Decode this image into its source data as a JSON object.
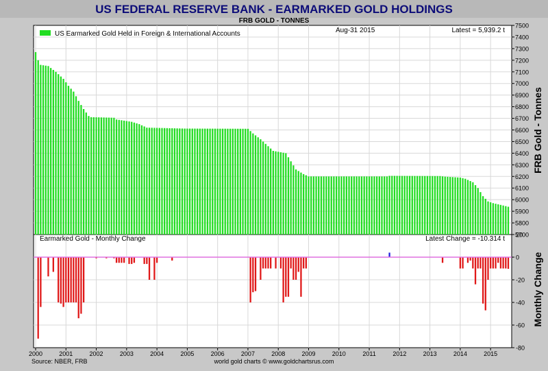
{
  "header": {
    "title": "US FEDERAL RESERVE BANK - EARMARKED GOLD HOLDINGS",
    "subtitle": "FRB GOLD - TONNES"
  },
  "footer": {
    "source": "Source: NBER, FRB",
    "credit": "world gold charts © www.goldchartsrus.com"
  },
  "colors": {
    "holdings_bar": "#22dd22",
    "change_negative": "#e01818",
    "change_positive": "#2020e0",
    "zero_line": "#e070e0",
    "title_bg": "#b8b8b8",
    "plot_bg": "#ffffff"
  },
  "chart_data": [
    {
      "type": "bar",
      "panel": "top",
      "legend_label": "US Earmarked Gold Held in Foreign & International Accounts",
      "legend_position": "top-left",
      "date_label": "Aug-31  2015",
      "latest_label": "Latest = 5,939.2 t",
      "ylabel": "FRB Gold - Tonnes",
      "ylim": [
        5700,
        7500
      ],
      "yticks": [
        5700,
        5800,
        5900,
        6000,
        6100,
        6200,
        6300,
        6400,
        6500,
        6600,
        6700,
        6800,
        6900,
        7000,
        7100,
        7200,
        7300,
        7400,
        7500
      ],
      "grid": true,
      "start": "2000-01",
      "end": "2015-08",
      "frequency": "monthly",
      "anchors": [
        [
          "2000-01",
          7270
        ],
        [
          "2000-02",
          7200
        ],
        [
          "2000-03",
          7160
        ],
        [
          "2000-06",
          7150
        ],
        [
          "2000-09",
          7100
        ],
        [
          "2000-12",
          7040
        ],
        [
          "2001-02",
          6980
        ],
        [
          "2001-04",
          6930
        ],
        [
          "2001-06",
          6850
        ],
        [
          "2001-08",
          6780
        ],
        [
          "2001-10",
          6720
        ],
        [
          "2001-11",
          6710
        ],
        [
          "2002-08",
          6705
        ],
        [
          "2002-09",
          6690
        ],
        [
          "2003-03",
          6670
        ],
        [
          "2003-06",
          6650
        ],
        [
          "2003-09",
          6620
        ],
        [
          "2004-12",
          6612
        ],
        [
          "2007-01",
          6610
        ],
        [
          "2007-03",
          6570
        ],
        [
          "2007-06",
          6520
        ],
        [
          "2007-09",
          6460
        ],
        [
          "2007-11",
          6420
        ],
        [
          "2008-04",
          6400
        ],
        [
          "2008-06",
          6330
        ],
        [
          "2008-08",
          6260
        ],
        [
          "2008-11",
          6220
        ],
        [
          "2009-01",
          6200
        ],
        [
          "2011-08",
          6200
        ],
        [
          "2011-09",
          6205
        ],
        [
          "2013-05",
          6203
        ],
        [
          "2013-07",
          6198
        ],
        [
          "2014-01",
          6190
        ],
        [
          "2014-03",
          6180
        ],
        [
          "2014-06",
          6150
        ],
        [
          "2014-08",
          6100
        ],
        [
          "2014-10",
          6030
        ],
        [
          "2014-12",
          5985
        ],
        [
          "2015-02",
          5970
        ],
        [
          "2015-05",
          5955
        ],
        [
          "2015-08",
          5939.2
        ]
      ]
    },
    {
      "type": "bar",
      "panel": "bottom",
      "title": "Earmarked Gold  -  Monthly Change",
      "latest_label": "Latest Change = -10.314 t",
      "ylabel": "Monthly Change",
      "ylim": [
        -80,
        20
      ],
      "yticks": [
        -80,
        -60,
        -40,
        -20,
        0,
        20
      ],
      "grid": true,
      "start": "2000-01",
      "end": "2015-08",
      "frequency": "monthly",
      "default_value": 0,
      "changes": [
        [
          "2000-02",
          -72
        ],
        [
          "2000-03",
          -44
        ],
        [
          "2000-06",
          -17
        ],
        [
          "2000-08",
          -13
        ],
        [
          "2000-10",
          -40
        ],
        [
          "2000-11",
          -41
        ],
        [
          "2000-12",
          -44
        ],
        [
          "2001-01",
          -40
        ],
        [
          "2001-02",
          -40
        ],
        [
          "2001-03",
          -40
        ],
        [
          "2001-04",
          -40
        ],
        [
          "2001-05",
          -40
        ],
        [
          "2001-06",
          -54
        ],
        [
          "2001-07",
          -50
        ],
        [
          "2001-08",
          -40
        ],
        [
          "2002-01",
          -1
        ],
        [
          "2002-05",
          -1
        ],
        [
          "2002-08",
          -1
        ],
        [
          "2002-09",
          -5
        ],
        [
          "2002-10",
          -5
        ],
        [
          "2002-11",
          -5
        ],
        [
          "2002-12",
          -5
        ],
        [
          "2003-02",
          -6
        ],
        [
          "2003-03",
          -6
        ],
        [
          "2003-04",
          -5
        ],
        [
          "2003-08",
          -6
        ],
        [
          "2003-09",
          -6
        ],
        [
          "2003-10",
          -20
        ],
        [
          "2003-12",
          -20
        ],
        [
          "2004-01",
          -5
        ],
        [
          "2004-07",
          -3
        ],
        [
          "2007-02",
          -40
        ],
        [
          "2007-03",
          -31
        ],
        [
          "2007-04",
          -30
        ],
        [
          "2007-06",
          -20
        ],
        [
          "2007-07",
          -10
        ],
        [
          "2007-08",
          -10
        ],
        [
          "2007-09",
          -10
        ],
        [
          "2007-10",
          -10
        ],
        [
          "2007-12",
          -10
        ],
        [
          "2008-02",
          -10
        ],
        [
          "2008-03",
          -40
        ],
        [
          "2008-04",
          -35
        ],
        [
          "2008-05",
          -35
        ],
        [
          "2008-06",
          -10
        ],
        [
          "2008-07",
          -20
        ],
        [
          "2008-08",
          -20
        ],
        [
          "2008-09",
          -13
        ],
        [
          "2008-10",
          -35
        ],
        [
          "2008-11",
          -10
        ],
        [
          "2008-12",
          -10
        ],
        [
          "2011-09",
          4
        ],
        [
          "2013-06",
          -5
        ],
        [
          "2014-01",
          -10
        ],
        [
          "2014-02",
          -10
        ],
        [
          "2014-04",
          -5
        ],
        [
          "2014-05",
          -3
        ],
        [
          "2014-06",
          -10
        ],
        [
          "2014-07",
          -24
        ],
        [
          "2014-08",
          -10
        ],
        [
          "2014-09",
          -10
        ],
        [
          "2014-10",
          -41
        ],
        [
          "2014-11",
          -47
        ],
        [
          "2014-12",
          -20
        ],
        [
          "2015-01",
          -10
        ],
        [
          "2015-02",
          -10
        ],
        [
          "2015-03",
          -10
        ],
        [
          "2015-04",
          -5
        ],
        [
          "2015-05",
          -10
        ],
        [
          "2015-06",
          -10
        ],
        [
          "2015-07",
          -10
        ],
        [
          "2015-08",
          -10.3
        ]
      ]
    }
  ],
  "x_axis": {
    "years": [
      "2000",
      "2001",
      "2002",
      "2003",
      "2004",
      "2005",
      "2006",
      "2007",
      "2008",
      "2009",
      "2010",
      "2011",
      "2012",
      "2013",
      "2014",
      "2015"
    ]
  }
}
